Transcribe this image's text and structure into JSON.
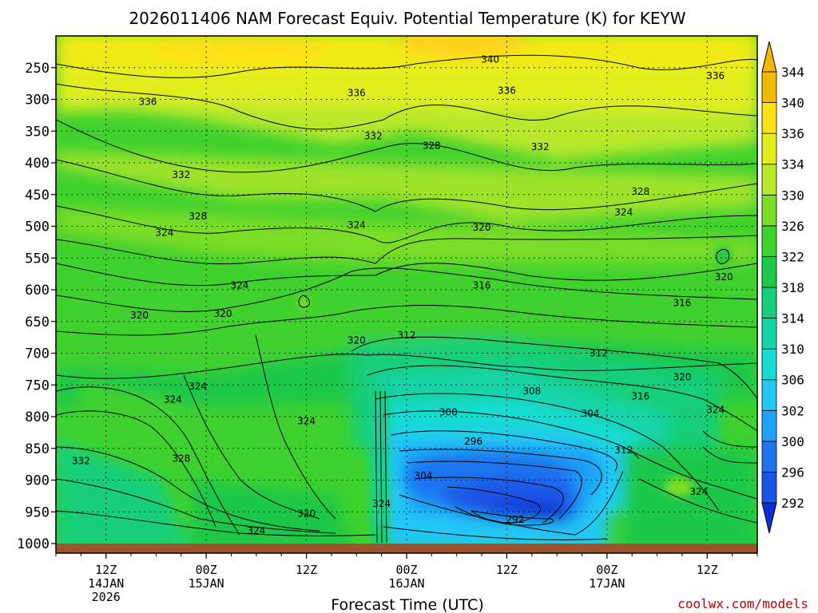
{
  "chart_data": {
    "type": "heatmap",
    "title": "2026011406 NAM Forecast Equiv. Potential Temperature (K) for KEYW",
    "xlabel": "Forecast Time (UTC)",
    "ylabel": "",
    "credit": "coolwx.com/models",
    "y_ticks": [
      250,
      300,
      350,
      400,
      450,
      500,
      550,
      600,
      650,
      700,
      750,
      800,
      850,
      900,
      950,
      1000
    ],
    "y_range": [
      200,
      1000
    ],
    "x_ticks": [
      {
        "hour": 6,
        "line1": "12Z",
        "line2": "14JAN",
        "line3": "2026"
      },
      {
        "hour": 18,
        "line1": "00Z",
        "line2": "15JAN",
        "line3": ""
      },
      {
        "hour": 30,
        "line1": "12Z",
        "line2": "",
        "line3": ""
      },
      {
        "hour": 42,
        "line1": "00Z",
        "line2": "16JAN",
        "line3": ""
      },
      {
        "hour": 54,
        "line1": "12Z",
        "line2": "",
        "line3": ""
      },
      {
        "hour": 66,
        "line1": "00Z",
        "line2": "17JAN",
        "line3": ""
      },
      {
        "hour": 78,
        "line1": "12Z",
        "line2": "",
        "line3": ""
      }
    ],
    "x_range_hours": [
      0,
      84
    ],
    "grid": true,
    "colorbar": {
      "levels": [
        292,
        296,
        300,
        302,
        306,
        310,
        314,
        318,
        322,
        326,
        330,
        334,
        336,
        340,
        344
      ],
      "colors": [
        "#0b2fd6",
        "#1a55e6",
        "#1f74f0",
        "#1fa2f7",
        "#23c8f5",
        "#17dcd2",
        "#13d4a8",
        "#16cf78",
        "#1ec84a",
        "#3fd12e",
        "#7cdd28",
        "#b9e92a",
        "#e2ef1c",
        "#ffe214",
        "#f5b800"
      ]
    },
    "contour_labels": [
      {
        "text": "340",
        "hour": 52,
        "p": 237
      },
      {
        "text": "336",
        "hour": 79,
        "p": 263
      },
      {
        "text": "336",
        "hour": 11,
        "p": 304
      },
      {
        "text": "336",
        "hour": 36,
        "p": 290
      },
      {
        "text": "336",
        "hour": 54,
        "p": 286
      },
      {
        "text": "332",
        "hour": 38,
        "p": 358
      },
      {
        "text": "332",
        "hour": 58,
        "p": 375
      },
      {
        "text": "332",
        "hour": 15,
        "p": 419
      },
      {
        "text": "328",
        "hour": 45,
        "p": 373
      },
      {
        "text": "328",
        "hour": 70,
        "p": 445
      },
      {
        "text": "328",
        "hour": 17,
        "p": 484
      },
      {
        "text": "324",
        "hour": 13,
        "p": 510
      },
      {
        "text": "324",
        "hour": 36,
        "p": 498
      },
      {
        "text": "324",
        "hour": 68,
        "p": 478
      },
      {
        "text": "320",
        "hour": 51,
        "p": 502
      },
      {
        "text": "320",
        "hour": 80,
        "p": 580
      },
      {
        "text": "316",
        "hour": 51,
        "p": 593
      },
      {
        "text": "316",
        "hour": 75,
        "p": 621
      },
      {
        "text": "324",
        "hour": 22,
        "p": 593
      },
      {
        "text": "320",
        "hour": 10,
        "p": 640
      },
      {
        "text": "320",
        "hour": 20,
        "p": 638
      },
      {
        "text": "320",
        "hour": 36,
        "p": 680
      },
      {
        "text": "312",
        "hour": 42,
        "p": 672
      },
      {
        "text": "312",
        "hour": 65,
        "p": 700
      },
      {
        "text": "308",
        "hour": 57,
        "p": 760
      },
      {
        "text": "304",
        "hour": 64,
        "p": 795
      },
      {
        "text": "300",
        "hour": 47,
        "p": 793
      },
      {
        "text": "296",
        "hour": 50,
        "p": 839
      },
      {
        "text": "304",
        "hour": 44,
        "p": 893
      },
      {
        "text": "292",
        "hour": 55,
        "p": 962
      },
      {
        "text": "324",
        "hour": 14,
        "p": 773
      },
      {
        "text": "324",
        "hour": 17,
        "p": 752
      },
      {
        "text": "324",
        "hour": 30,
        "p": 807
      },
      {
        "text": "328",
        "hour": 15,
        "p": 866
      },
      {
        "text": "332",
        "hour": 3,
        "p": 870
      },
      {
        "text": "320",
        "hour": 30,
        "p": 953
      },
      {
        "text": "324",
        "hour": 24,
        "p": 980
      },
      {
        "text": "324",
        "hour": 39,
        "p": 937
      },
      {
        "text": "316",
        "hour": 70,
        "p": 768
      },
      {
        "text": "320",
        "hour": 75,
        "p": 738
      },
      {
        "text": "312",
        "hour": 68,
        "p": 853
      },
      {
        "text": "324",
        "hour": 79,
        "p": 789
      },
      {
        "text": "324",
        "hour": 77,
        "p": 918
      }
    ]
  }
}
